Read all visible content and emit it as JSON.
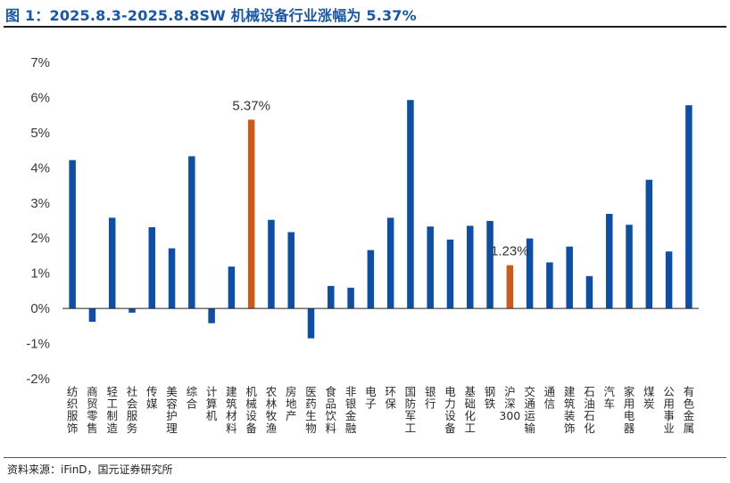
{
  "title": "图 1：2025.8.3-2025.8.8SW 机械设备行业涨幅为 5.37%",
  "source": "资料来源：iFinD，国元证券研究所",
  "chart_data": {
    "type": "bar",
    "title": "图 1：2025.8.3-2025.8.8SW 机械设备行业涨幅为 5.37%",
    "xlabel": "",
    "ylabel": "",
    "ylim": [
      -2,
      7
    ],
    "yticks": [
      -2,
      -1,
      0,
      1,
      2,
      3,
      4,
      5,
      6,
      7
    ],
    "ytick_labels": [
      "-2%",
      "-1%",
      "0%",
      "1%",
      "2%",
      "3%",
      "4%",
      "5%",
      "6%",
      "7%"
    ],
    "grid": false,
    "categories": [
      "纺织服饰",
      "商贸零售",
      "轻工制造",
      "社会服务",
      "传媒",
      "美容护理",
      "综合",
      "计算机",
      "建筑材料",
      "机械设备",
      "农林牧渔",
      "房地产",
      "医药生物",
      "食品饮料",
      "非银金融",
      "电子",
      "环保",
      "国防军工",
      "银行",
      "电力设备",
      "基础化工",
      "钢铁",
      "沪深300",
      "交通运输",
      "通信",
      "建筑装饰",
      "石油石化",
      "汽车",
      "家用电器",
      "煤炭",
      "公用事业",
      "有色金属"
    ],
    "values": [
      4.22,
      -0.38,
      2.58,
      -0.12,
      2.31,
      1.71,
      4.33,
      -0.42,
      1.19,
      5.37,
      2.52,
      2.17,
      -0.85,
      0.64,
      0.59,
      1.66,
      2.58,
      5.93,
      2.33,
      1.96,
      2.35,
      2.49,
      1.23,
      1.99,
      1.31,
      1.76,
      0.92,
      2.69,
      2.38,
      3.66,
      1.62,
      5.78
    ],
    "highlighted": [
      "机械设备",
      "沪深300"
    ],
    "data_labels": [
      {
        "category": "机械设备",
        "text": "5.37%"
      },
      {
        "category": "沪深300",
        "text": "1.23%"
      }
    ],
    "colors": {
      "default": "#0d4ea6",
      "highlight": "#cc5a1a"
    }
  }
}
